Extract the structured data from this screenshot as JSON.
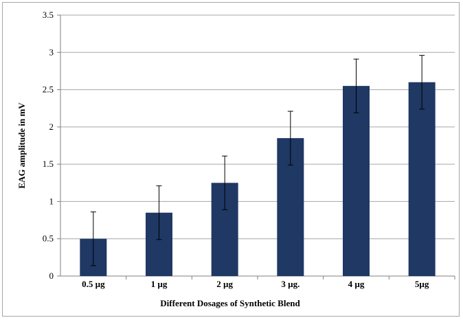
{
  "chart_data": {
    "type": "bar",
    "title": "",
    "xlabel": "Different Dosages of Synthetic Blend",
    "ylabel": "EAG amplitude in mV",
    "categories": [
      "0.5 µg",
      "1 µg",
      "2 µg",
      "3 µg.",
      "4 µg",
      "5µg"
    ],
    "values": [
      0.5,
      0.85,
      1.25,
      1.85,
      2.55,
      2.6
    ],
    "error": [
      0.36,
      0.36,
      0.36,
      0.36,
      0.36,
      0.36
    ],
    "ylim": [
      0,
      3.5
    ],
    "yticks": [
      "0",
      "0.5",
      "1",
      "1.5",
      "2",
      "2.5",
      "3",
      "3.5"
    ],
    "grid": true,
    "bar_color": "#1f3864"
  }
}
